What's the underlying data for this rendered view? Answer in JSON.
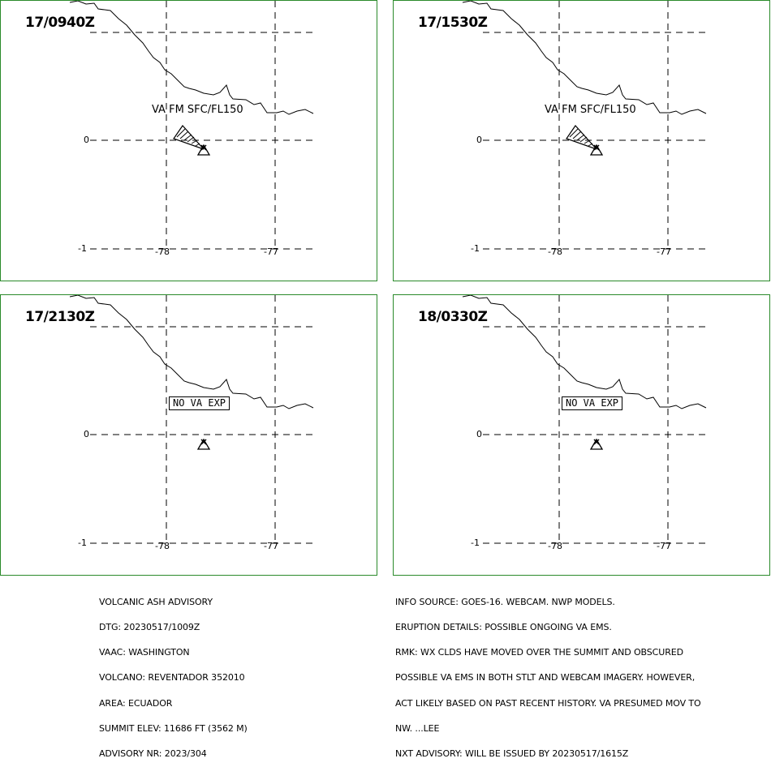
{
  "panels": [
    {
      "time": "17/0940Z",
      "label": "VA FM SFC/FL150",
      "kind": "ash"
    },
    {
      "time": "17/1530Z",
      "label": "VA FM SFC/FL150",
      "kind": "ash"
    },
    {
      "time": "17/2130Z",
      "label": "NO VA EXP",
      "kind": "none"
    },
    {
      "time": "18/0330Z",
      "label": "NO VA EXP",
      "kind": "none"
    }
  ],
  "axes": {
    "lat_labels": [
      "0",
      "-1"
    ],
    "lon_labels": [
      "-78",
      "-77"
    ]
  },
  "advisory_left": [
    "VOLCANIC ASH ADVISORY",
    "DTG: 20230517/1009Z",
    "VAAC: WASHINGTON",
    "VOLCANO: REVENTADOR 352010",
    "AREA: ECUADOR",
    "SUMMIT ELEV: 11686 FT (3562 M)",
    "ADVISORY NR: 2023/304"
  ],
  "advisory_right": [
    "INFO SOURCE: GOES-16. WEBCAM. NWP MODELS.",
    "ERUPTION DETAILS: POSSIBLE ONGOING VA EMS.",
    "RMK: WX CLDS HAVE MOVED OVER THE SUMMIT AND OBSCURED",
    "POSSIBLE VA EMS IN BOTH STLT AND WEBCAM IMAGERY. HOWEVER,",
    "ACT LIKELY BASED ON PAST RECENT HISTORY. VA PRESUMED MOV TO",
    "NW. ...LEE",
    "NXT ADVISORY: WILL BE ISSUED BY 20230517/1615Z"
  ],
  "colors": {
    "frame": "#2a8a2a",
    "ink": "#000000",
    "background": "#ffffff"
  }
}
